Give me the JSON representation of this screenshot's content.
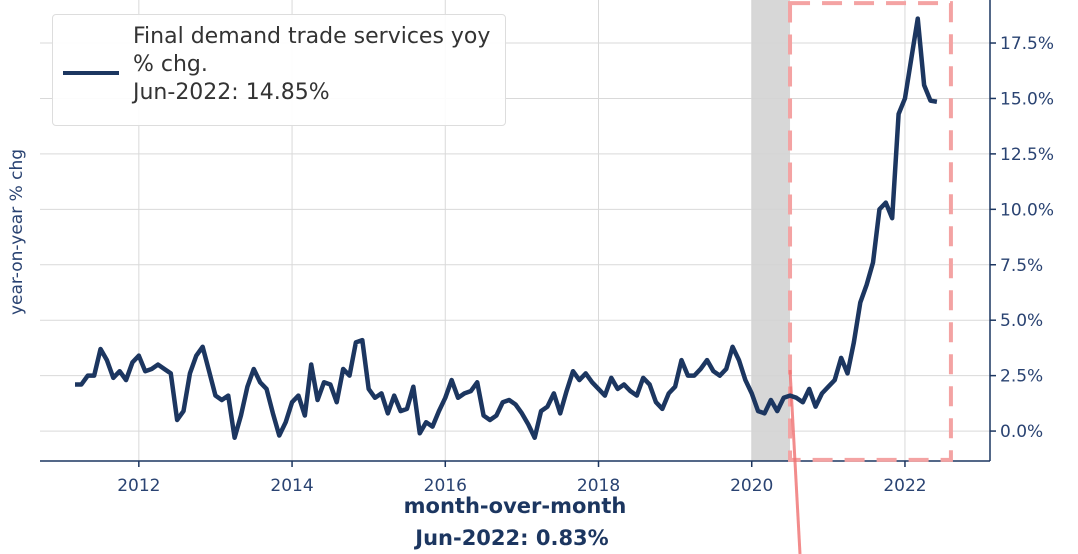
{
  "chart_data": {
    "type": "line",
    "y_label": "year-on-year % chg",
    "legend_note": "Jun-2022: 14.85%",
    "annotation": [
      "month-over-month",
      "Jun-2022: 0.83%"
    ],
    "recession": {
      "x": [
        2020.0,
        2020.5
      ],
      "color": "#d3d3d3"
    },
    "highlight": {
      "x": [
        2020.5,
        2022.6
      ],
      "ylim": [
        -1.3,
        19.3
      ],
      "color": "#f4a3a3"
    },
    "grid": true,
    "legend": "upper left",
    "xlim": [
      2010.71,
      2023.11
    ],
    "ylim": [
      -1.35,
      19.44
    ],
    "xticks": [
      2012,
      2014,
      2016,
      2018,
      2020,
      2022
    ],
    "yticks": [
      {
        "value": 0,
        "label": "0.0%"
      },
      {
        "value": 2.5,
        "label": "2.5%"
      },
      {
        "value": 5,
        "label": "5.0%"
      },
      {
        "value": 7.5,
        "label": "7.5%"
      },
      {
        "value": 10,
        "label": "10.0%"
      },
      {
        "value": 12.5,
        "label": "12.5%"
      },
      {
        "value": 15,
        "label": "15.0%"
      },
      {
        "value": 17.5,
        "label": "17.5%"
      }
    ],
    "x": [
      2011.167,
      2011.25,
      2011.333,
      2011.417,
      2011.5,
      2011.583,
      2011.667,
      2011.75,
      2011.833,
      2011.917,
      2012,
      2012.083,
      2012.167,
      2012.25,
      2012.333,
      2012.417,
      2012.5,
      2012.583,
      2012.667,
      2012.75,
      2012.833,
      2012.917,
      2013,
      2013.083,
      2013.167,
      2013.25,
      2013.333,
      2013.417,
      2013.5,
      2013.583,
      2013.667,
      2013.75,
      2013.833,
      2013.917,
      2014,
      2014.083,
      2014.167,
      2014.25,
      2014.333,
      2014.417,
      2014.5,
      2014.583,
      2014.667,
      2014.75,
      2014.833,
      2014.917,
      2015,
      2015.083,
      2015.167,
      2015.25,
      2015.333,
      2015.417,
      2015.5,
      2015.583,
      2015.667,
      2015.75,
      2015.833,
      2015.917,
      2016,
      2016.083,
      2016.167,
      2016.25,
      2016.333,
      2016.417,
      2016.5,
      2016.583,
      2016.667,
      2016.75,
      2016.833,
      2016.917,
      2017,
      2017.083,
      2017.167,
      2017.25,
      2017.333,
      2017.417,
      2017.5,
      2017.583,
      2017.667,
      2017.75,
      2017.833,
      2017.917,
      2018,
      2018.083,
      2018.167,
      2018.25,
      2018.333,
      2018.417,
      2018.5,
      2018.583,
      2018.667,
      2018.75,
      2018.833,
      2018.917,
      2019,
      2019.083,
      2019.167,
      2019.25,
      2019.333,
      2019.417,
      2019.5,
      2019.583,
      2019.667,
      2019.75,
      2019.833,
      2019.917,
      2020,
      2020.083,
      2020.167,
      2020.25,
      2020.333,
      2020.417,
      2020.5,
      2020.583,
      2020.667,
      2020.75,
      2020.833,
      2020.917,
      2021,
      2021.083,
      2021.167,
      2021.25,
      2021.333,
      2021.417,
      2021.5,
      2021.583,
      2021.667,
      2021.75,
      2021.833,
      2021.917,
      2022,
      2022.083,
      2022.167,
      2022.25,
      2022.333,
      2022.417
    ],
    "series": [
      {
        "name": "Final demand trade services yoy % chg.",
        "color": "#1c3660",
        "values": [
          2.1,
          2.1,
          2.5,
          2.5,
          3.7,
          3.2,
          2.4,
          2.7,
          2.3,
          3.1,
          3.4,
          2.7,
          2.8,
          3.0,
          2.8,
          2.6,
          0.5,
          0.9,
          2.6,
          3.4,
          3.8,
          2.7,
          1.6,
          1.4,
          1.6,
          -0.3,
          0.7,
          2.0,
          2.8,
          2.2,
          1.9,
          0.8,
          -0.2,
          0.4,
          1.3,
          1.6,
          0.7,
          3.0,
          1.4,
          2.2,
          2.1,
          1.3,
          2.8,
          2.5,
          4.0,
          4.1,
          1.9,
          1.5,
          1.7,
          0.8,
          1.6,
          0.9,
          1.0,
          2.0,
          -0.1,
          0.4,
          0.2,
          0.9,
          1.5,
          2.3,
          1.5,
          1.7,
          1.8,
          2.2,
          0.7,
          0.5,
          0.7,
          1.3,
          1.4,
          1.2,
          0.8,
          0.3,
          -0.3,
          0.9,
          1.1,
          1.7,
          0.8,
          1.8,
          2.7,
          2.3,
          2.6,
          2.2,
          1.9,
          1.6,
          2.4,
          1.9,
          2.1,
          1.8,
          1.6,
          2.4,
          2.1,
          1.3,
          1.0,
          1.7,
          2.0,
          3.2,
          2.5,
          2.5,
          2.8,
          3.2,
          2.7,
          2.5,
          2.8,
          3.8,
          3.2,
          2.3,
          1.7,
          0.9,
          0.8,
          1.4,
          0.9,
          1.5,
          1.6,
          1.5,
          1.3,
          1.9,
          1.1,
          1.7,
          2.0,
          2.3,
          3.3,
          2.6,
          4.0,
          5.8,
          6.6,
          7.6,
          10.0,
          10.3,
          9.6,
          14.3,
          15.0,
          16.8,
          18.6,
          15.6,
          14.9,
          14.85
        ]
      }
    ]
  }
}
